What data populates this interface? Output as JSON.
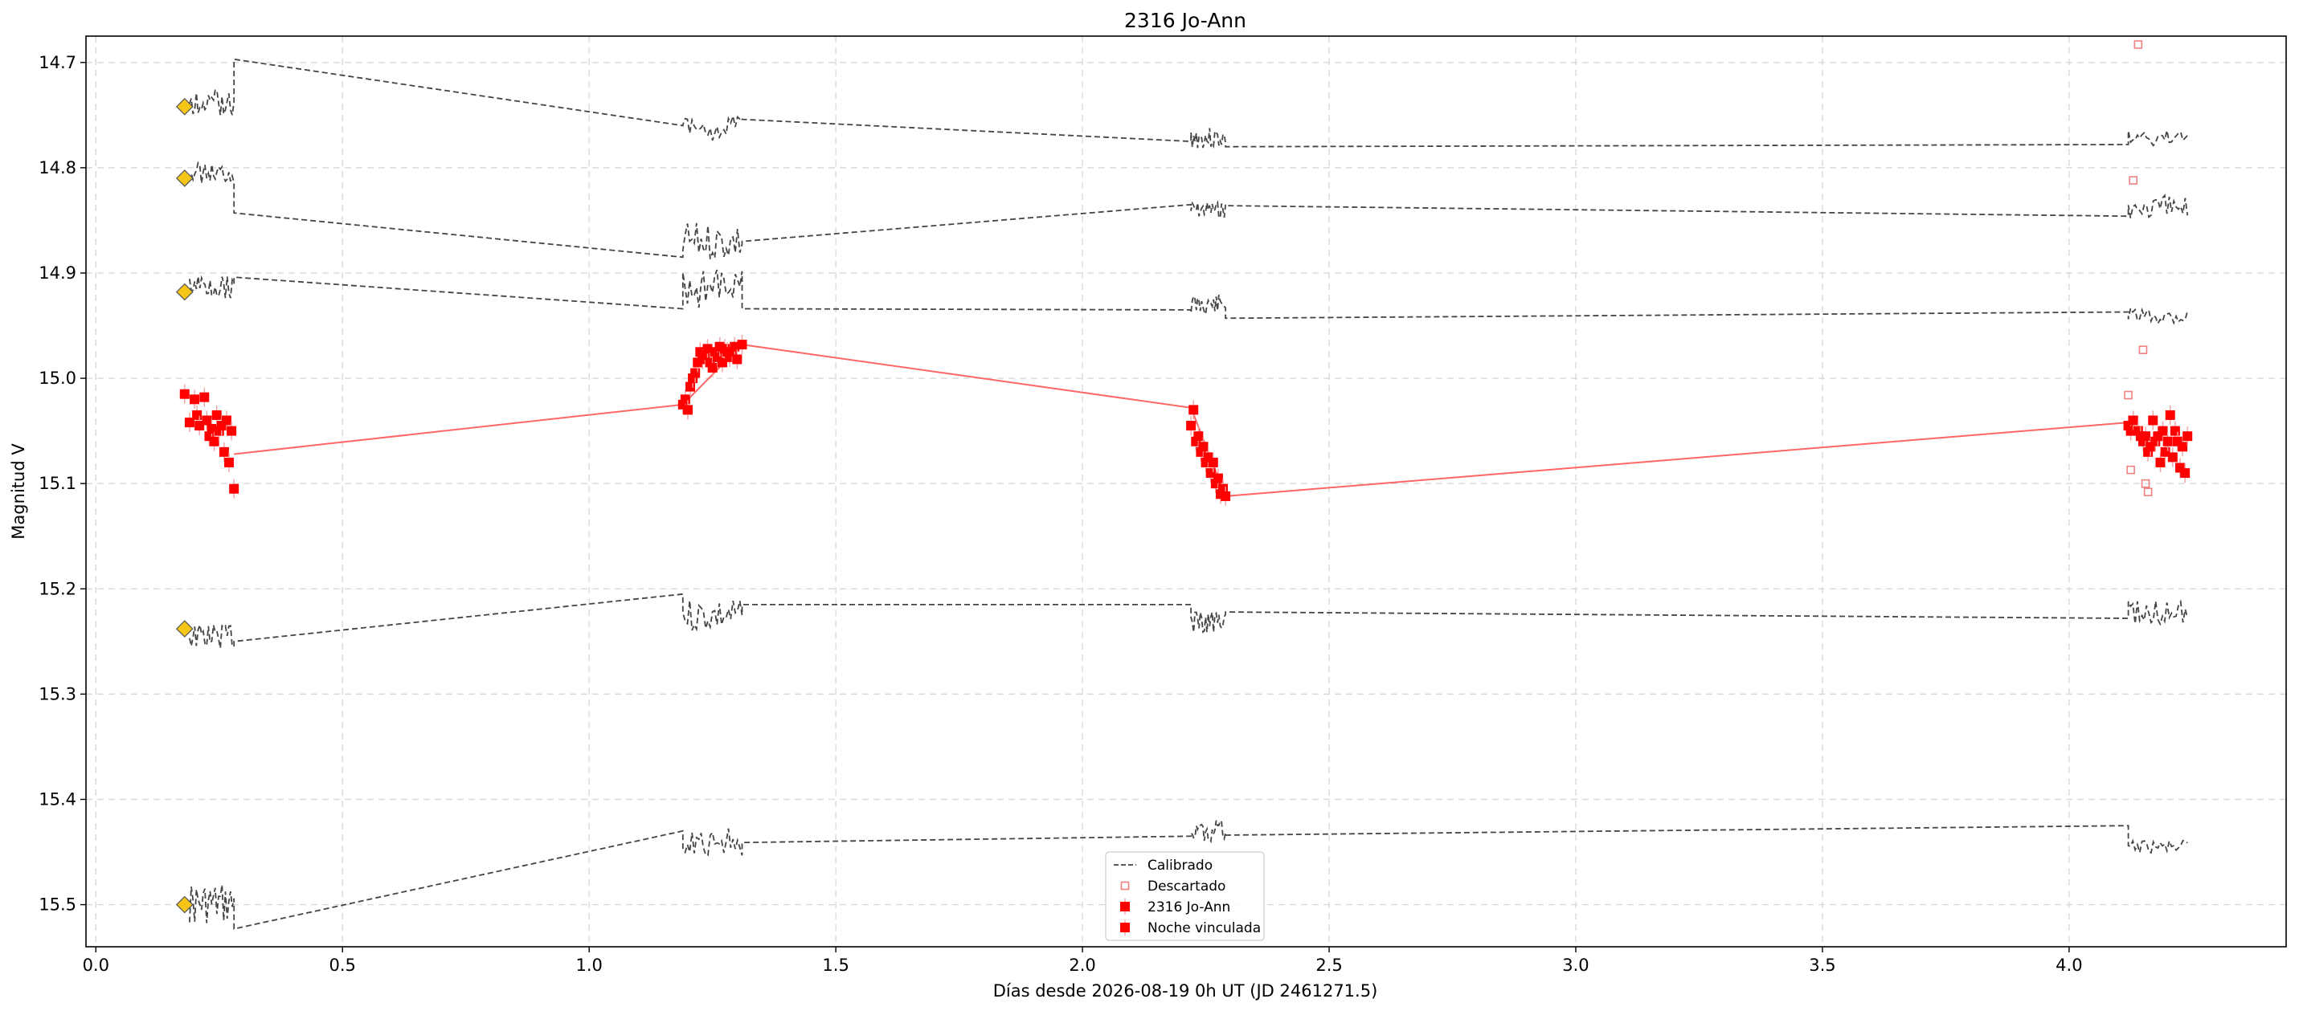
{
  "chart_data": {
    "type": "scatter",
    "title": "2316 Jo-Ann",
    "xlabel": "Días desde 2026-08-19 0h UT (JD 2461271.5)",
    "ylabel": "Magnitud V",
    "xlim": [
      -0.02,
      4.44
    ],
    "ylim": [
      15.54,
      14.675
    ],
    "y_inverted": true,
    "grid": true,
    "legend_position": "lower center",
    "x_ticks": [
      "0.0",
      "0.5",
      "1.0",
      "1.5",
      "2.0",
      "2.5",
      "3.0",
      "3.5",
      "4.0"
    ],
    "y_ticks": [
      "14.7",
      "14.8",
      "14.9",
      "15.0",
      "15.1",
      "15.2",
      "15.3",
      "15.4",
      "15.5"
    ],
    "legend": [
      {
        "label": "Calibrado",
        "style": "dashed-line",
        "color": "#444444"
      },
      {
        "label": "Descartado",
        "style": "open-square",
        "color": "#f08080"
      },
      {
        "label": "2316 Jo-Ann",
        "style": "filled-square-errorbar",
        "color": "#ff0000"
      },
      {
        "label": "Noche vinculada",
        "style": "filled-square-errorbar",
        "color": "#ff0000"
      }
    ],
    "colors": {
      "target": "#ff0000",
      "linked_line": "#ff6666",
      "discarded": "#f08080",
      "comparison": "#444444",
      "start_marker": "#f5c518"
    },
    "start_markers": {
      "x": 0.18,
      "y": [
        14.742,
        14.81,
        14.918,
        15.238,
        15.5
      ]
    },
    "comparison_series": [
      {
        "nights": [
          {
            "start": 0.19,
            "end": 0.28,
            "mean": 14.738,
            "amp": 0.012,
            "seed": 1
          },
          {
            "start": 1.19,
            "end": 1.31,
            "mean": 14.762,
            "amp": 0.012,
            "seed": 2
          },
          {
            "start": 2.22,
            "end": 2.29,
            "mean": 14.772,
            "amp": 0.01,
            "seed": 3
          },
          {
            "start": 4.12,
            "end": 4.24,
            "mean": 14.772,
            "amp": 0.008,
            "seed": 4
          }
        ],
        "gaps": [
          [
            0.28,
            14.697,
            1.19,
            14.76
          ],
          [
            1.31,
            14.754,
            2.22,
            14.775
          ],
          [
            2.29,
            14.78,
            4.12,
            14.778
          ]
        ]
      },
      {
        "nights": [
          {
            "start": 0.19,
            "end": 0.28,
            "mean": 14.805,
            "amp": 0.01,
            "seed": 5
          },
          {
            "start": 1.19,
            "end": 1.31,
            "mean": 14.87,
            "amp": 0.018,
            "seed": 6
          },
          {
            "start": 2.22,
            "end": 2.29,
            "mean": 14.84,
            "amp": 0.008,
            "seed": 7
          },
          {
            "start": 4.12,
            "end": 4.24,
            "mean": 14.838,
            "amp": 0.012,
            "seed": 8
          }
        ],
        "gaps": [
          [
            0.28,
            14.843,
            1.19,
            14.885
          ],
          [
            1.31,
            14.87,
            2.22,
            14.835
          ],
          [
            2.29,
            14.836,
            4.12,
            14.846
          ]
        ]
      },
      {
        "nights": [
          {
            "start": 0.19,
            "end": 0.28,
            "mean": 14.912,
            "amp": 0.012,
            "seed": 9
          },
          {
            "start": 1.19,
            "end": 1.31,
            "mean": 14.915,
            "amp": 0.018,
            "seed": 10
          },
          {
            "start": 2.22,
            "end": 2.29,
            "mean": 14.93,
            "amp": 0.01,
            "seed": 11
          },
          {
            "start": 4.12,
            "end": 4.24,
            "mean": 14.94,
            "amp": 0.008,
            "seed": 12
          }
        ],
        "gaps": [
          [
            0.28,
            14.904,
            1.19,
            14.934
          ],
          [
            1.31,
            14.934,
            2.22,
            14.935
          ],
          [
            2.29,
            14.943,
            4.12,
            14.937
          ]
        ]
      },
      {
        "nights": [
          {
            "start": 0.19,
            "end": 0.28,
            "mean": 15.245,
            "amp": 0.012,
            "seed": 13
          },
          {
            "start": 1.19,
            "end": 1.31,
            "mean": 15.225,
            "amp": 0.016,
            "seed": 14
          },
          {
            "start": 2.22,
            "end": 2.29,
            "mean": 15.232,
            "amp": 0.01,
            "seed": 15
          },
          {
            "start": 4.12,
            "end": 4.24,
            "mean": 15.222,
            "amp": 0.012,
            "seed": 16
          }
        ],
        "gaps": [
          [
            0.28,
            15.25,
            1.19,
            15.205
          ],
          [
            1.31,
            15.215,
            2.22,
            15.215
          ],
          [
            2.29,
            15.222,
            4.12,
            15.228
          ]
        ]
      },
      {
        "nights": [
          {
            "start": 0.19,
            "end": 0.28,
            "mean": 15.5,
            "amp": 0.02,
            "seed": 17
          },
          {
            "start": 1.19,
            "end": 1.31,
            "mean": 15.44,
            "amp": 0.014,
            "seed": 18
          },
          {
            "start": 2.22,
            "end": 2.29,
            "mean": 15.43,
            "amp": 0.01,
            "seed": 19
          },
          {
            "start": 4.12,
            "end": 4.24,
            "mean": 15.445,
            "amp": 0.006,
            "seed": 20
          }
        ],
        "gaps": [
          [
            0.28,
            15.523,
            1.19,
            15.43
          ],
          [
            1.31,
            15.441,
            2.22,
            15.435
          ],
          [
            2.29,
            15.434,
            4.12,
            15.425
          ]
        ]
      }
    ],
    "target_series": {
      "name": "2316 Jo-Ann",
      "nights": [
        {
          "x": [
            0.18,
            0.19,
            0.2,
            0.205,
            0.21,
            0.22,
            0.225,
            0.23,
            0.235,
            0.24,
            0.245,
            0.25,
            0.255,
            0.26,
            0.265,
            0.27,
            0.275,
            0.28
          ],
          "y": [
            15.015,
            15.042,
            15.02,
            15.035,
            15.045,
            15.018,
            15.04,
            15.055,
            15.048,
            15.06,
            15.035,
            15.05,
            15.045,
            15.07,
            15.04,
            15.08,
            15.05,
            15.105
          ]
        },
        {
          "x": [
            1.19,
            1.195,
            1.2,
            1.205,
            1.21,
            1.215,
            1.22,
            1.225,
            1.23,
            1.235,
            1.24,
            1.245,
            1.25,
            1.255,
            1.26,
            1.265,
            1.27,
            1.275,
            1.28,
            1.285,
            1.29,
            1.295,
            1.3,
            1.31
          ],
          "y": [
            15.025,
            15.02,
            15.03,
            15.008,
            15.0,
            14.995,
            14.985,
            14.975,
            14.982,
            14.978,
            14.972,
            14.985,
            14.99,
            14.975,
            14.98,
            14.97,
            14.985,
            14.972,
            14.975,
            14.98,
            14.975,
            14.97,
            14.982,
            14.968
          ]
        },
        {
          "x": [
            2.22,
            2.225,
            2.23,
            2.235,
            2.24,
            2.245,
            2.25,
            2.255,
            2.26,
            2.265,
            2.27,
            2.275,
            2.28,
            2.285,
            2.29
          ],
          "y": [
            15.045,
            15.03,
            15.06,
            15.055,
            15.07,
            15.065,
            15.08,
            15.075,
            15.09,
            15.08,
            15.1,
            15.095,
            15.11,
            15.105,
            15.112
          ]
        },
        {
          "x": [
            4.12,
            4.125,
            4.13,
            4.14,
            4.145,
            4.15,
            4.155,
            4.16,
            4.165,
            4.17,
            4.175,
            4.18,
            4.185,
            4.19,
            4.195,
            4.2,
            4.205,
            4.21,
            4.215,
            4.22,
            4.225,
            4.23,
            4.235,
            4.24
          ],
          "y": [
            15.045,
            15.05,
            15.04,
            15.05,
            15.055,
            15.06,
            15.055,
            15.07,
            15.065,
            15.04,
            15.06,
            15.055,
            15.08,
            15.05,
            15.07,
            15.06,
            15.035,
            15.075,
            15.05,
            15.06,
            15.085,
            15.065,
            15.09,
            15.055
          ]
        }
      ]
    },
    "linked_line": {
      "x": [
        0.28,
        1.19,
        1.31,
        2.22,
        2.29,
        4.12
      ],
      "y": [
        15.072,
        15.025,
        14.968,
        15.028,
        15.112,
        15.042
      ]
    },
    "discarded": {
      "x": [
        4.14,
        4.13,
        4.15,
        4.12,
        4.125,
        4.155,
        4.16
      ],
      "y": [
        14.683,
        14.812,
        14.973,
        15.016,
        15.087,
        15.1,
        15.108
      ]
    }
  }
}
